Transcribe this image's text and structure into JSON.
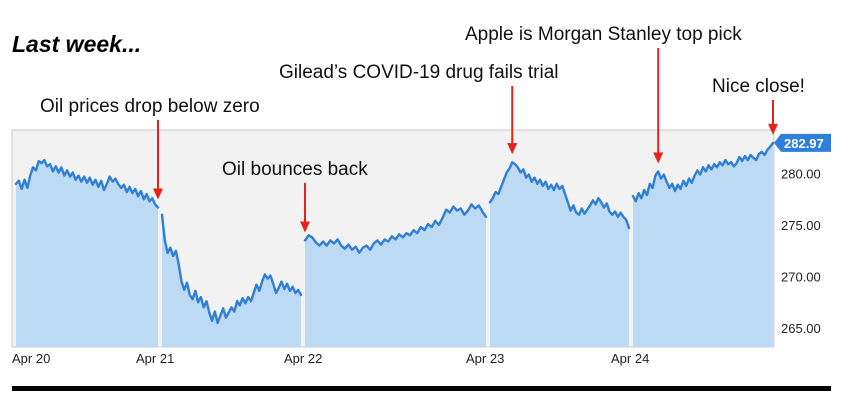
{
  "chart_data": {
    "type": "area",
    "title": "Last week...",
    "xlabel": "",
    "ylabel": "",
    "ylim": [
      263.5,
      287.5
    ],
    "y_ticks": [
      "280.00",
      "275.00",
      "270.00",
      "265.00"
    ],
    "y_tick_values": [
      280,
      275,
      270,
      265
    ],
    "x_ticks": [
      "Apr 20",
      "Apr 21",
      "Apr 22",
      "Apr 23",
      "Apr 24"
    ],
    "last_value_label": "282.97",
    "grid": false,
    "colors": {
      "line": "#2f7fd8",
      "fill": "#bcdaf3",
      "background": "#f2f2f2",
      "arrow": "#e8221b",
      "badge": "#2f7fd8"
    },
    "sessions": [
      {
        "day": "Apr 20",
        "points": [
          [
            0.0,
            279.0
          ],
          [
            0.02,
            279.3
          ],
          [
            0.04,
            278.5
          ],
          [
            0.06,
            279.4
          ],
          [
            0.08,
            278.6
          ],
          [
            0.1,
            279.8
          ],
          [
            0.12,
            280.6
          ],
          [
            0.14,
            280.3
          ],
          [
            0.16,
            281.2
          ],
          [
            0.18,
            281.0
          ],
          [
            0.2,
            281.3
          ],
          [
            0.22,
            280.7
          ],
          [
            0.24,
            280.9
          ],
          [
            0.26,
            280.2
          ],
          [
            0.28,
            280.7
          ],
          [
            0.3,
            280.1
          ],
          [
            0.32,
            280.6
          ],
          [
            0.34,
            279.8
          ],
          [
            0.36,
            280.3
          ],
          [
            0.38,
            279.7
          ],
          [
            0.4,
            280.1
          ],
          [
            0.42,
            279.4
          ],
          [
            0.44,
            279.8
          ],
          [
            0.46,
            279.2
          ],
          [
            0.48,
            279.7
          ],
          [
            0.5,
            279.1
          ],
          [
            0.52,
            279.6
          ],
          [
            0.54,
            278.9
          ],
          [
            0.56,
            279.4
          ],
          [
            0.58,
            278.7
          ],
          [
            0.6,
            279.3
          ],
          [
            0.62,
            278.4
          ],
          [
            0.64,
            279.0
          ],
          [
            0.66,
            279.7
          ],
          [
            0.68,
            279.2
          ],
          [
            0.7,
            279.5
          ],
          [
            0.72,
            279.0
          ],
          [
            0.74,
            278.6
          ],
          [
            0.76,
            278.9
          ],
          [
            0.78,
            278.2
          ],
          [
            0.8,
            278.7
          ],
          [
            0.82,
            278.1
          ],
          [
            0.84,
            278.5
          ],
          [
            0.86,
            277.8
          ],
          [
            0.88,
            278.3
          ],
          [
            0.9,
            277.5
          ],
          [
            0.92,
            278.0
          ],
          [
            0.94,
            277.3
          ],
          [
            0.96,
            277.6
          ],
          [
            0.98,
            277.0
          ],
          [
            1.0,
            276.7
          ]
        ]
      },
      {
        "day": "Apr 21",
        "points": [
          [
            0.0,
            276.0
          ],
          [
            0.02,
            273.5
          ],
          [
            0.04,
            272.3
          ],
          [
            0.06,
            272.8
          ],
          [
            0.08,
            272.0
          ],
          [
            0.1,
            272.5
          ],
          [
            0.12,
            271.2
          ],
          [
            0.14,
            269.5
          ],
          [
            0.16,
            268.7
          ],
          [
            0.18,
            269.4
          ],
          [
            0.2,
            268.2
          ],
          [
            0.22,
            267.8
          ],
          [
            0.24,
            268.6
          ],
          [
            0.26,
            267.5
          ],
          [
            0.28,
            268.0
          ],
          [
            0.3,
            267.0
          ],
          [
            0.32,
            267.6
          ],
          [
            0.34,
            266.5
          ],
          [
            0.36,
            265.7
          ],
          [
            0.38,
            266.6
          ],
          [
            0.4,
            265.5
          ],
          [
            0.42,
            266.2
          ],
          [
            0.44,
            266.9
          ],
          [
            0.46,
            266.0
          ],
          [
            0.48,
            266.5
          ],
          [
            0.5,
            267.0
          ],
          [
            0.52,
            266.6
          ],
          [
            0.54,
            267.6
          ],
          [
            0.56,
            267.2
          ],
          [
            0.58,
            267.9
          ],
          [
            0.6,
            267.4
          ],
          [
            0.62,
            268.0
          ],
          [
            0.64,
            267.6
          ],
          [
            0.66,
            268.4
          ],
          [
            0.68,
            269.2
          ],
          [
            0.7,
            268.6
          ],
          [
            0.72,
            269.5
          ],
          [
            0.74,
            270.2
          ],
          [
            0.76,
            269.8
          ],
          [
            0.78,
            270.1
          ],
          [
            0.8,
            269.3
          ],
          [
            0.82,
            268.4
          ],
          [
            0.84,
            268.9
          ],
          [
            0.86,
            269.5
          ],
          [
            0.88,
            268.8
          ],
          [
            0.9,
            269.3
          ],
          [
            0.92,
            268.6
          ],
          [
            0.94,
            269.0
          ],
          [
            0.96,
            268.4
          ],
          [
            0.98,
            268.7
          ],
          [
            1.0,
            268.2
          ]
        ]
      },
      {
        "day": "Apr 22",
        "points": [
          [
            0.0,
            273.5
          ],
          [
            0.02,
            274.0
          ],
          [
            0.04,
            273.8
          ],
          [
            0.06,
            273.3
          ],
          [
            0.08,
            273.0
          ],
          [
            0.1,
            273.4
          ],
          [
            0.12,
            273.0
          ],
          [
            0.14,
            273.5
          ],
          [
            0.16,
            273.2
          ],
          [
            0.18,
            273.6
          ],
          [
            0.2,
            273.0
          ],
          [
            0.22,
            272.7
          ],
          [
            0.24,
            273.1
          ],
          [
            0.26,
            272.6
          ],
          [
            0.28,
            272.9
          ],
          [
            0.3,
            272.3
          ],
          [
            0.32,
            272.8
          ],
          [
            0.34,
            273.0
          ],
          [
            0.36,
            272.6
          ],
          [
            0.38,
            273.2
          ],
          [
            0.4,
            273.5
          ],
          [
            0.42,
            273.1
          ],
          [
            0.44,
            273.6
          ],
          [
            0.46,
            273.4
          ],
          [
            0.48,
            273.9
          ],
          [
            0.5,
            273.6
          ],
          [
            0.52,
            274.1
          ],
          [
            0.54,
            273.8
          ],
          [
            0.56,
            274.2
          ],
          [
            0.58,
            274.0
          ],
          [
            0.6,
            274.5
          ],
          [
            0.62,
            274.2
          ],
          [
            0.64,
            274.8
          ],
          [
            0.66,
            274.5
          ],
          [
            0.68,
            275.1
          ],
          [
            0.7,
            274.8
          ],
          [
            0.72,
            275.4
          ],
          [
            0.74,
            275.0
          ],
          [
            0.76,
            275.7
          ],
          [
            0.78,
            276.5
          ],
          [
            0.8,
            276.2
          ],
          [
            0.82,
            276.8
          ],
          [
            0.84,
            276.4
          ],
          [
            0.86,
            276.6
          ],
          [
            0.88,
            276.0
          ],
          [
            0.9,
            276.4
          ],
          [
            0.92,
            277.0
          ],
          [
            0.94,
            276.6
          ],
          [
            0.96,
            276.9
          ],
          [
            0.98,
            276.3
          ],
          [
            1.0,
            275.8
          ]
        ]
      },
      {
        "day": "Apr 23",
        "points": [
          [
            0.0,
            277.2
          ],
          [
            0.02,
            277.6
          ],
          [
            0.04,
            278.2
          ],
          [
            0.06,
            278.0
          ],
          [
            0.08,
            278.7
          ],
          [
            0.1,
            279.4
          ],
          [
            0.12,
            280.1
          ],
          [
            0.14,
            280.5
          ],
          [
            0.16,
            281.1
          ],
          [
            0.18,
            280.9
          ],
          [
            0.2,
            280.6
          ],
          [
            0.22,
            280.1
          ],
          [
            0.24,
            280.4
          ],
          [
            0.26,
            279.6
          ],
          [
            0.28,
            279.9
          ],
          [
            0.3,
            279.2
          ],
          [
            0.32,
            279.6
          ],
          [
            0.34,
            279.0
          ],
          [
            0.36,
            279.4
          ],
          [
            0.38,
            278.8
          ],
          [
            0.4,
            279.2
          ],
          [
            0.42,
            278.5
          ],
          [
            0.44,
            278.9
          ],
          [
            0.46,
            278.4
          ],
          [
            0.48,
            279.0
          ],
          [
            0.5,
            278.5
          ],
          [
            0.52,
            278.8
          ],
          [
            0.54,
            278.0
          ],
          [
            0.56,
            277.2
          ],
          [
            0.58,
            276.4
          ],
          [
            0.6,
            276.9
          ],
          [
            0.62,
            276.2
          ],
          [
            0.64,
            276.0
          ],
          [
            0.66,
            276.6
          ],
          [
            0.68,
            276.1
          ],
          [
            0.7,
            276.5
          ],
          [
            0.72,
            276.9
          ],
          [
            0.74,
            277.4
          ],
          [
            0.76,
            277.0
          ],
          [
            0.78,
            277.6
          ],
          [
            0.8,
            277.2
          ],
          [
            0.82,
            276.7
          ],
          [
            0.84,
            277.1
          ],
          [
            0.86,
            276.3
          ],
          [
            0.88,
            276.0
          ],
          [
            0.9,
            276.3
          ],
          [
            0.92,
            275.8
          ],
          [
            0.94,
            276.2
          ],
          [
            0.96,
            275.8
          ],
          [
            0.98,
            275.5
          ],
          [
            1.0,
            274.7
          ]
        ]
      },
      {
        "day": "Apr 24",
        "points": [
          [
            0.0,
            277.8
          ],
          [
            0.02,
            277.3
          ],
          [
            0.04,
            278.1
          ],
          [
            0.06,
            277.6
          ],
          [
            0.08,
            278.4
          ],
          [
            0.1,
            277.9
          ],
          [
            0.12,
            279.0
          ],
          [
            0.14,
            278.6
          ],
          [
            0.16,
            279.8
          ],
          [
            0.18,
            280.2
          ],
          [
            0.2,
            279.5
          ],
          [
            0.22,
            279.9
          ],
          [
            0.24,
            279.2
          ],
          [
            0.26,
            278.6
          ],
          [
            0.28,
            279.0
          ],
          [
            0.3,
            278.3
          ],
          [
            0.32,
            278.9
          ],
          [
            0.34,
            278.5
          ],
          [
            0.36,
            279.3
          ],
          [
            0.38,
            278.8
          ],
          [
            0.4,
            279.5
          ],
          [
            0.42,
            279.1
          ],
          [
            0.44,
            279.8
          ],
          [
            0.46,
            280.3
          ],
          [
            0.48,
            279.9
          ],
          [
            0.5,
            280.6
          ],
          [
            0.52,
            280.2
          ],
          [
            0.54,
            280.8
          ],
          [
            0.56,
            280.4
          ],
          [
            0.58,
            280.9
          ],
          [
            0.6,
            280.6
          ],
          [
            0.62,
            281.1
          ],
          [
            0.64,
            280.8
          ],
          [
            0.66,
            281.3
          ],
          [
            0.68,
            280.9
          ],
          [
            0.7,
            281.1
          ],
          [
            0.72,
            280.7
          ],
          [
            0.74,
            281.0
          ],
          [
            0.76,
            281.6
          ],
          [
            0.78,
            281.2
          ],
          [
            0.8,
            281.7
          ],
          [
            0.82,
            281.3
          ],
          [
            0.84,
            281.8
          ],
          [
            0.86,
            281.5
          ],
          [
            0.88,
            281.3
          ],
          [
            0.9,
            281.9
          ],
          [
            0.92,
            282.1
          ],
          [
            0.94,
            281.8
          ],
          [
            0.96,
            282.3
          ],
          [
            0.98,
            282.6
          ],
          [
            1.0,
            282.97
          ]
        ]
      }
    ],
    "annotations": [
      {
        "text": "Oil prices drop below zero",
        "session": 0,
        "at": 1.0
      },
      {
        "text": "Oil bounces back",
        "session": 2,
        "at": 0.0
      },
      {
        "text": "Gilead’s COVID-19 drug fails trial",
        "session": 3,
        "at": 0.16
      },
      {
        "text": "Apple is Morgan Stanley top pick",
        "session": 4,
        "at": 0.18
      },
      {
        "text": "Nice close!",
        "session": 4,
        "at": 1.0
      }
    ]
  }
}
